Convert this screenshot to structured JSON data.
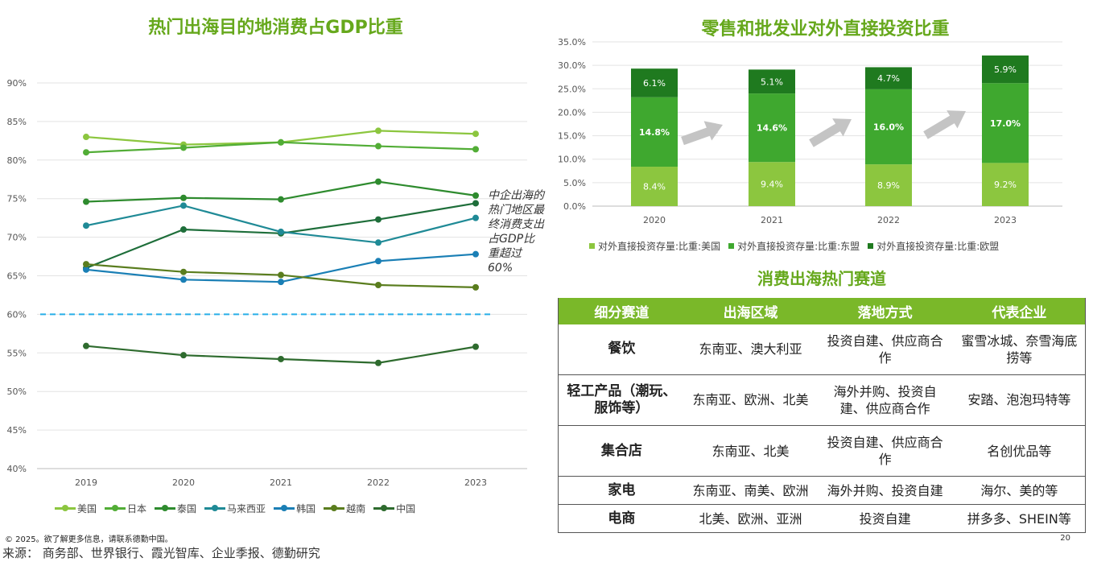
{
  "colors": {
    "title_green": "#66a81c",
    "header_green": "#7ab829",
    "threshold_line": "#27aee8",
    "arrow_gray": "#c4c4c4"
  },
  "left_chart": {
    "title": "热门出海目的地消费占GDP比重",
    "annotation": "中企出海的热门地区最终消费支出占GDP比重超过60%"
  },
  "right_chart": {
    "title": "零售和批发业对外直接投资比重"
  },
  "chart_data": [
    {
      "type": "line",
      "title": "热门出海目的地消费占GDP比重",
      "categories": [
        "2019",
        "2020",
        "2021",
        "2022",
        "2023"
      ],
      "y_ticks": [
        "40%",
        "45%",
        "50%",
        "55%",
        "60%",
        "65%",
        "70%",
        "75%",
        "80%",
        "85%",
        "90%"
      ],
      "ylim": [
        40,
        90
      ],
      "grid": true,
      "legend_position": "bottom",
      "threshold": 60,
      "series": [
        {
          "name": "美国",
          "values": [
            83.0,
            82.0,
            82.3,
            83.8,
            83.4
          ],
          "color": "#8cc63f"
        },
        {
          "name": "日本",
          "values": [
            81.0,
            81.6,
            82.3,
            81.8,
            81.4
          ],
          "color": "#52ad36"
        },
        {
          "name": "泰国",
          "values": [
            74.6,
            75.1,
            74.9,
            77.2,
            75.4
          ],
          "color": "#2e8b2e"
        },
        {
          "name": "马来西亚",
          "values": [
            71.5,
            74.1,
            70.7,
            69.3,
            72.5
          ],
          "color": "#1f8a96"
        },
        {
          "name": "韩国",
          "values": [
            65.8,
            64.5,
            64.2,
            66.9,
            67.8
          ],
          "color": "#1a7fb5"
        },
        {
          "name": "越南",
          "values": [
            66.5,
            65.5,
            65.1,
            63.8,
            63.5
          ],
          "color": "#5a7d1e"
        },
        {
          "name": "中国",
          "values": [
            55.9,
            54.7,
            54.2,
            53.7,
            55.8
          ],
          "color": "#2e6b2e"
        }
      ],
      "extra_line": {
        "values": [
          66.0,
          71.0,
          70.5,
          72.3,
          74.4
        ],
        "color": "#1e6e3a"
      }
    },
    {
      "type": "bar",
      "stacked": true,
      "title": "零售和批发业对外直接投资比重",
      "categories": [
        "2020",
        "2021",
        "2022",
        "2023"
      ],
      "y_ticks": [
        "0.0%",
        "5.0%",
        "10.0%",
        "15.0%",
        "20.0%",
        "25.0%",
        "30.0%",
        "35.0%"
      ],
      "ylim": [
        0,
        35
      ],
      "legend_position": "bottom",
      "series": [
        {
          "name": "对外直接投资存量:比重:美国",
          "values": [
            8.4,
            9.4,
            8.9,
            9.2
          ],
          "labels": [
            "8.4%",
            "9.4%",
            "8.9%",
            "9.2%"
          ],
          "color": "#8cc63f"
        },
        {
          "name": "对外直接投资存量:比重:东盟",
          "values": [
            14.8,
            14.6,
            16.0,
            17.0
          ],
          "labels": [
            "14.8%",
            "14.6%",
            "16.0%",
            "17.0%"
          ],
          "color": "#3fa82f"
        },
        {
          "name": "对外直接投资存量:比重:欧盟",
          "values": [
            6.1,
            5.1,
            4.7,
            5.9
          ],
          "labels": [
            "6.1%",
            "5.1%",
            "4.7%",
            "5.9%"
          ],
          "color": "#1f7a1f"
        }
      ]
    }
  ],
  "table": {
    "title": "消费出海热门赛道",
    "headers": [
      "细分赛道",
      "出海区域",
      "落地方式",
      "代表企业"
    ],
    "rows": [
      [
        "餐饮",
        "东南亚、澳大利亚",
        "投资自建、供应商合作",
        "蜜雪冰城、奈雪海底捞等"
      ],
      [
        "轻工产品（潮玩、服饰等）",
        "东南亚、欧洲、北美",
        "海外并购、投资自建、供应商合作",
        "安踏、泡泡玛特等"
      ],
      [
        "集合店",
        "东南亚、北美",
        "投资自建、供应商合作",
        "名创优品等"
      ],
      [
        "家电",
        "东南亚、南美、欧洲",
        "海外并购、投资自建",
        "海尔、美的等"
      ],
      [
        "电商",
        "北美、欧洲、亚洲",
        "投资自建",
        "拼多多、SHEIN等"
      ]
    ]
  },
  "footer": {
    "copyright": "© 2025。欲了解更多信息，请联系德勤中国。",
    "source": "来源： 商务部、世界银行、霞光智库、企业季报、德勤研究",
    "page_number": "20"
  }
}
